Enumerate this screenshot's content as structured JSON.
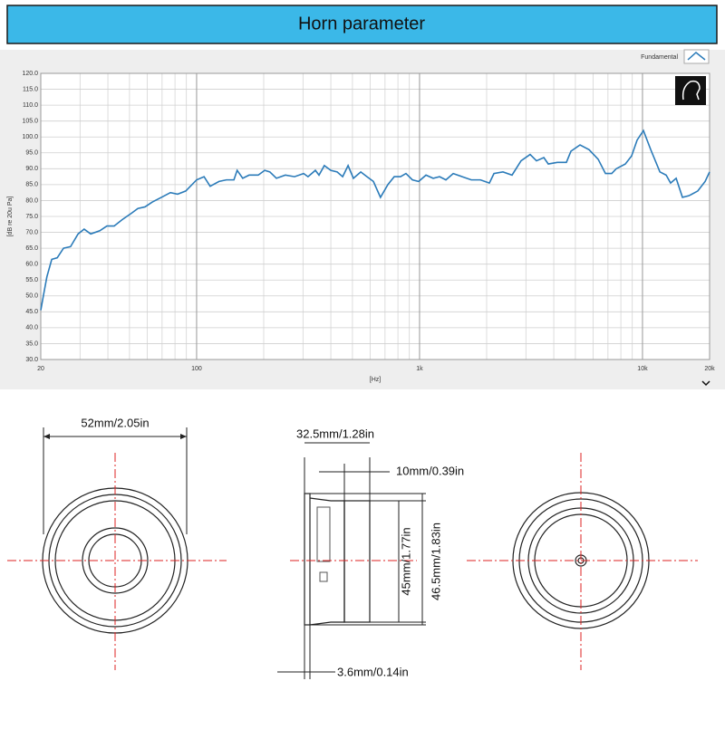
{
  "chart_data": {
    "type": "line",
    "title": "Horn parameter",
    "x_label": "[Hz]",
    "y_label": "[dB re 20u Pa]",
    "log_x": true,
    "grid": true,
    "legend": "top-right",
    "xlim": [
      20,
      20000
    ],
    "ylim": [
      30,
      120
    ],
    "xticks": [
      20,
      100,
      {
        "value": 1000,
        "label": "1k"
      },
      {
        "value": 10000,
        "label": "10k"
      },
      {
        "value": 20000,
        "label": "20k"
      }
    ],
    "yticks": [
      {
        "value": 30,
        "label": "30.0"
      },
      {
        "value": 35,
        "label": "35.0"
      },
      {
        "value": 40,
        "label": "40.0"
      },
      {
        "value": 45,
        "label": "45.0"
      },
      {
        "value": 50,
        "label": "50.0"
      },
      {
        "value": 55,
        "label": "55.0"
      },
      {
        "value": 60,
        "label": "60.0"
      },
      {
        "value": 65,
        "label": "65.0"
      },
      {
        "value": 70,
        "label": "70.0"
      },
      {
        "value": 75,
        "label": "75.0"
      },
      {
        "value": 80,
        "label": "80.0"
      },
      {
        "value": 85,
        "label": "85.0"
      },
      {
        "value": 90,
        "label": "90.0"
      },
      {
        "value": 95,
        "label": "95.0"
      },
      {
        "value": 100,
        "label": "100.0"
      },
      {
        "value": 105,
        "label": "105.0"
      },
      {
        "value": 110,
        "label": "110.0"
      },
      {
        "value": 115,
        "label": "115.0"
      },
      {
        "value": 120,
        "label": "120.0"
      }
    ],
    "x": [
      20,
      20.6,
      21.3,
      22.4,
      23.7,
      25.3,
      27.2,
      29.4,
      31.3,
      33.5,
      36.8,
      39.6,
      42.7,
      46.4,
      51,
      54.5,
      58.7,
      63.2,
      69.5,
      76.3,
      82.2,
      89.4,
      100,
      108,
      115,
      126,
      136,
      147,
      152,
      161,
      172,
      189,
      202,
      213,
      228,
      250,
      275,
      302,
      316,
      341,
      354,
      374,
      400,
      427,
      452,
      478,
      505,
      545,
      581,
      621,
      668,
      721,
      770,
      822,
      869,
      929,
      991,
      1069,
      1151,
      1230,
      1313,
      1416,
      1553,
      1707,
      1875,
      2057,
      2157,
      2367,
      2600,
      2853,
      3133,
      3346,
      3610,
      3780,
      4150,
      4557,
      4775,
      5247,
      5760,
      6325,
      6822,
      7280,
      7625,
      8375,
      8935,
      9460,
      10100,
      10890,
      11970,
      12770,
      13370,
      14160,
      15110,
      16140,
      17700,
      19100,
      20000
    ],
    "series": [
      {
        "name": "Fundamental",
        "color": "#2b7bb9",
        "values": [
          45.5,
          50.5,
          56,
          61.5,
          62,
          65,
          65.5,
          69.5,
          71,
          69.5,
          70.5,
          72,
          72,
          74,
          76,
          77.5,
          78,
          79.5,
          81,
          82.5,
          82,
          83,
          86.5,
          87.5,
          84.5,
          86,
          86.5,
          86.5,
          89.5,
          87,
          88,
          88,
          89.5,
          89,
          87,
          88,
          87.5,
          88.5,
          87.5,
          89.5,
          88,
          91,
          89.5,
          89,
          87.5,
          91,
          87,
          89,
          87.5,
          86,
          81,
          85,
          87.5,
          87.5,
          88.5,
          86.5,
          86,
          88,
          87,
          87.5,
          86.5,
          88.5,
          87.5,
          86.5,
          86.5,
          85.5,
          88.5,
          89,
          88,
          92.5,
          94.5,
          92.5,
          93.5,
          91.5,
          92,
          92,
          95.5,
          97.5,
          96,
          93,
          88.5,
          88.5,
          90,
          91.5,
          94,
          99,
          102,
          96,
          89,
          88,
          85.5,
          87,
          81,
          81.5,
          83,
          86,
          89
        ]
      }
    ]
  },
  "dimensions": {
    "diameter": "52mm/2.05in",
    "depth": "32.5mm/1.28in",
    "magnet_depth": "10mm/0.39in",
    "inner_height": "45mm/1.77in",
    "outer_height": "46.5mm/1.83in",
    "flange": "3.6mm/0.14in"
  }
}
